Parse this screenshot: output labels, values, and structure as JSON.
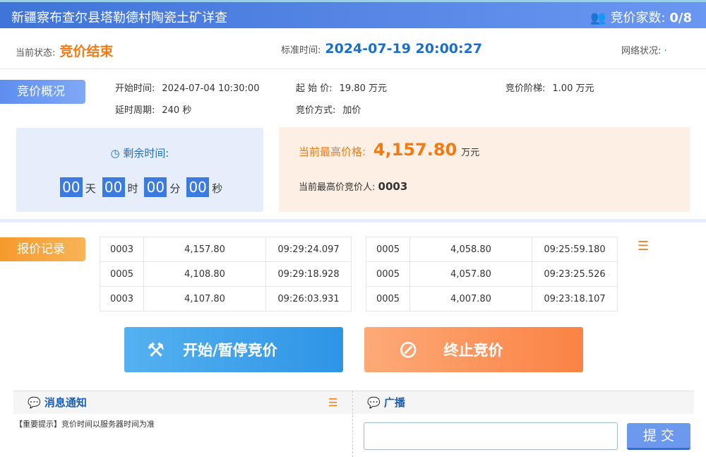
{
  "header": {
    "title": "新疆察布查尔县塔勒德村陶瓷土矿详查",
    "bidders_label": "竞价家数:",
    "bidders": "0/8"
  },
  "status": {
    "label": "当前状态:",
    "value": "竞价结束",
    "time_label": "标准时间:",
    "time": "2024-07-19 20:00:27",
    "net_label": "网络状况:",
    "net_value": "·"
  },
  "overview": {
    "tag": "竞价概况",
    "start_label": "开始时间:",
    "start": "2024-07-04 10:30:00",
    "base_label": "起 始 价:",
    "base": "19.80 万元",
    "step_label": "竞价阶梯:",
    "step": "1.00 万元",
    "delay_label": "延时周期:",
    "delay": "240 秒",
    "mode_label": "竞价方式:",
    "mode": "加价"
  },
  "countdown": {
    "label": "剩余时间:",
    "days": "00",
    "d": "天",
    "hours": "00",
    "h": "时",
    "mins": "00",
    "m": "分",
    "secs": "00",
    "s": "秒"
  },
  "highest": {
    "label": "当前最高价格:",
    "value": "4,157.80",
    "unit": "万元",
    "bidder_label": "当前最高价竞价人:",
    "bidder": "0003"
  },
  "records": {
    "tag": "报价记录",
    "left": [
      [
        "0003",
        "4,157.80",
        "09:29:24.097"
      ],
      [
        "0005",
        "4,108.80",
        "09:29:18.928"
      ],
      [
        "0003",
        "4,107.80",
        "09:26:03.931"
      ]
    ],
    "right": [
      [
        "0005",
        "4,058.80",
        "09:25:59.180"
      ],
      [
        "0005",
        "4,057.80",
        "09:23:25.526"
      ],
      [
        "0005",
        "4,007.80",
        "09:23:18.107"
      ]
    ]
  },
  "buttons": {
    "start": "开始/暂停竞价",
    "stop": "终止竞价"
  },
  "notice": {
    "title": "消息通知",
    "items": [
      "【重要提示】竞价时间以服务器时间为准"
    ]
  },
  "broadcast": {
    "title": "广播",
    "input": "",
    "submit": "提 交"
  }
}
